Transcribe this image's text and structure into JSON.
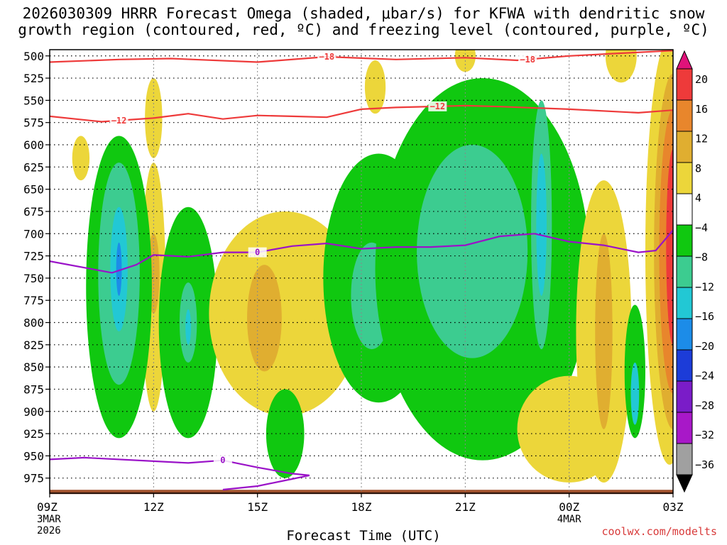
{
  "chart_data": {
    "type": "heatmap",
    "title_line_1": "2026030309 HRRR Forecast Omega (shaded, μbar/s) for KFWA with dendritic snow",
    "title_line_2": "growth region (contoured, red, ºC) and freezing level (contoured, purple, ºC)",
    "xlabel": "Forecast Time (UTC)",
    "credit": "coolwx.com/modelts",
    "x_ticks": [
      {
        "hour": 0,
        "label": "09Z",
        "sub1": "3MAR",
        "sub2": "2026"
      },
      {
        "hour": 3,
        "label": "12Z",
        "sub1": "",
        "sub2": ""
      },
      {
        "hour": 6,
        "label": "15Z",
        "sub1": "",
        "sub2": ""
      },
      {
        "hour": 9,
        "label": "18Z",
        "sub1": "",
        "sub2": ""
      },
      {
        "hour": 12,
        "label": "21Z",
        "sub1": "",
        "sub2": ""
      },
      {
        "hour": 15,
        "label": "00Z",
        "sub1": "4MAR",
        "sub2": ""
      },
      {
        "hour": 18,
        "label": "03Z",
        "sub1": "",
        "sub2": ""
      }
    ],
    "x_range_hours": [
      0,
      18
    ],
    "y_levels_mb": [
      500,
      525,
      550,
      575,
      600,
      625,
      650,
      675,
      700,
      725,
      750,
      775,
      800,
      825,
      850,
      875,
      900,
      925,
      950,
      975
    ],
    "y_range_mb": [
      493,
      992
    ],
    "colorbar": {
      "labels": [
        "20",
        "16",
        "12",
        "8",
        "4",
        "−4",
        "−8",
        "−12",
        "−16",
        "−20",
        "−24",
        "−28",
        "−32",
        "−36"
      ],
      "bins": [
        {
          "lo": 16,
          "hi": 20,
          "color": "#ee3a3a"
        },
        {
          "lo": 12,
          "hi": 16,
          "color": "#e8862c"
        },
        {
          "lo": 8,
          "hi": 12,
          "color": "#e0ae30"
        },
        {
          "lo": 4,
          "hi": 8,
          "color": "#ecd63a"
        },
        {
          "lo": -4,
          "hi": 4,
          "color": "#ffffff"
        },
        {
          "lo": -8,
          "hi": -4,
          "color": "#10c810"
        },
        {
          "lo": -12,
          "hi": -8,
          "color": "#3ccc90"
        },
        {
          "lo": -16,
          "hi": -12,
          "color": "#22c8d4"
        },
        {
          "lo": -20,
          "hi": -16,
          "color": "#1c8ce8"
        },
        {
          "lo": -24,
          "hi": -20,
          "color": "#1c3cd8"
        },
        {
          "lo": -28,
          "hi": -24,
          "color": "#7a1cc8"
        },
        {
          "lo": -32,
          "hi": -28,
          "color": "#a818c8"
        },
        {
          "lo": -36,
          "hi": -32,
          "color": "#a0a0a0"
        }
      ],
      "over_color": "#e0127a",
      "under_color": "#000000"
    },
    "omega_features": [
      {
        "hour": 0.9,
        "p_center": 615,
        "half_h": 0.25,
        "half_p": 25,
        "value": 5
      },
      {
        "hour": 3.0,
        "p_center": 570,
        "half_h": 0.25,
        "half_p": 45,
        "value": 5
      },
      {
        "hour": 3.0,
        "p_center": 760,
        "half_h": 0.35,
        "half_p": 140,
        "value": 5
      },
      {
        "hour": 3.0,
        "p_center": 745,
        "half_h": 0.17,
        "half_p": 45,
        "value": 9
      },
      {
        "hour": 2.0,
        "p_center": 760,
        "half_h": 0.95,
        "half_p": 170,
        "value": -5
      },
      {
        "hour": 2.0,
        "p_center": 745,
        "half_h": 0.6,
        "half_p": 125,
        "value": -9
      },
      {
        "hour": 2.0,
        "p_center": 740,
        "half_h": 0.25,
        "half_p": 70,
        "value": -13
      },
      {
        "hour": 2.0,
        "p_center": 740,
        "half_h": 0.08,
        "half_p": 30,
        "value": -17
      },
      {
        "hour": 4.0,
        "p_center": 800,
        "half_h": 0.85,
        "half_p": 130,
        "value": -5
      },
      {
        "hour": 4.0,
        "p_center": 800,
        "half_h": 0.25,
        "half_p": 45,
        "value": -9
      },
      {
        "hour": 4.0,
        "p_center": 805,
        "half_h": 0.08,
        "half_p": 20,
        "value": -13
      },
      {
        "hour": 6.8,
        "p_center": 790,
        "half_h": 2.2,
        "half_p": 115,
        "value": 5
      },
      {
        "hour": 6.2,
        "p_center": 795,
        "half_h": 0.5,
        "half_p": 60,
        "value": 9
      },
      {
        "hour": 6.8,
        "p_center": 925,
        "half_h": 0.55,
        "half_p": 50,
        "value": -5
      },
      {
        "hour": 9.4,
        "p_center": 535,
        "half_h": 0.3,
        "half_p": 30,
        "value": 5
      },
      {
        "hour": 9.5,
        "p_center": 750,
        "half_h": 1.6,
        "half_p": 140,
        "value": -5
      },
      {
        "hour": 9.3,
        "p_center": 770,
        "half_h": 0.6,
        "half_p": 60,
        "value": -9
      },
      {
        "hour": 12.5,
        "p_center": 740,
        "half_h": 3.1,
        "half_p": 215,
        "value": -5
      },
      {
        "hour": 12.2,
        "p_center": 720,
        "half_h": 1.6,
        "half_p": 120,
        "value": -9
      },
      {
        "hour": 14.2,
        "p_center": 690,
        "half_h": 0.3,
        "half_p": 140,
        "value": -9
      },
      {
        "hour": 14.2,
        "p_center": 690,
        "half_h": 0.15,
        "half_p": 80,
        "value": -13
      },
      {
        "hour": 15.0,
        "p_center": 920,
        "half_h": 1.5,
        "half_p": 60,
        "value": 5
      },
      {
        "hour": 16.0,
        "p_center": 810,
        "half_h": 0.8,
        "half_p": 170,
        "value": 5
      },
      {
        "hour": 16.0,
        "p_center": 810,
        "half_h": 0.25,
        "half_p": 110,
        "value": 9
      },
      {
        "hour": 16.9,
        "p_center": 855,
        "half_h": 0.3,
        "half_p": 75,
        "value": -5
      },
      {
        "hour": 16.9,
        "p_center": 880,
        "half_h": 0.12,
        "half_p": 35,
        "value": -13
      },
      {
        "hour": 17.9,
        "p_center": 720,
        "half_h": 0.7,
        "half_p": 240,
        "value": 5
      },
      {
        "hour": 18.0,
        "p_center": 720,
        "half_h": 0.55,
        "half_p": 200,
        "value": 9
      },
      {
        "hour": 18.0,
        "p_center": 720,
        "half_h": 0.4,
        "half_p": 160,
        "value": 13
      },
      {
        "hour": 18.0,
        "p_center": 715,
        "half_h": 0.2,
        "half_p": 110,
        "value": 17
      },
      {
        "hour": 12.0,
        "p_center": 500,
        "half_h": 0.3,
        "half_p": 18,
        "value": 5
      },
      {
        "hour": 16.5,
        "p_center": 500,
        "half_h": 0.45,
        "half_p": 30,
        "value": 5
      }
    ],
    "dgz_contours": [
      {
        "label": "−18",
        "label_hour": 8.0,
        "points": [
          [
            0,
            507
          ],
          [
            2.0,
            504
          ],
          [
            3.5,
            503
          ],
          [
            6.0,
            507
          ],
          [
            8.0,
            501
          ],
          [
            10.0,
            504
          ],
          [
            12.0,
            502
          ],
          [
            13.5,
            505
          ],
          [
            15.0,
            500
          ],
          [
            16.5,
            497
          ],
          [
            18.0,
            494
          ]
        ]
      },
      {
        "label": "−18",
        "label_hour": 13.8,
        "points": []
      },
      {
        "label": "−12",
        "label_hour": 2.0,
        "points": [
          [
            0,
            568
          ],
          [
            1.5,
            574
          ],
          [
            3.0,
            570
          ],
          [
            4.0,
            565
          ],
          [
            5.0,
            571
          ],
          [
            6.0,
            567
          ],
          [
            7.0,
            568
          ],
          [
            8.0,
            569
          ],
          [
            9.0,
            560
          ],
          [
            10.0,
            558
          ],
          [
            12.0,
            556
          ],
          [
            13.0,
            557
          ],
          [
            15.0,
            560
          ],
          [
            17.0,
            564
          ],
          [
            18.0,
            561
          ]
        ]
      },
      {
        "label": "−12",
        "label_hour": 11.2,
        "points": []
      }
    ],
    "freezing_contours": [
      {
        "label": "0",
        "label_hour": 6.0,
        "points": [
          [
            0,
            731
          ],
          [
            1.8,
            744
          ],
          [
            2.5,
            735
          ],
          [
            3.0,
            724
          ],
          [
            4.0,
            726
          ],
          [
            5.0,
            721
          ],
          [
            6.0,
            721
          ],
          [
            7.0,
            714
          ],
          [
            8.0,
            711
          ],
          [
            9.0,
            717
          ],
          [
            10.0,
            715
          ],
          [
            11.0,
            715
          ],
          [
            12.0,
            713
          ],
          [
            13.0,
            703
          ],
          [
            14.0,
            700
          ],
          [
            15.0,
            709
          ],
          [
            16.0,
            713
          ],
          [
            17.0,
            721
          ],
          [
            17.5,
            719
          ],
          [
            18.0,
            696
          ]
        ]
      },
      {
        "label": "0",
        "label_hour": 5.0,
        "points": [
          [
            0,
            954
          ],
          [
            1.0,
            952
          ],
          [
            3.0,
            956
          ],
          [
            4.0,
            958
          ],
          [
            5.0,
            955
          ],
          [
            6.0,
            963
          ],
          [
            7.0,
            970
          ],
          [
            7.5,
            972
          ],
          [
            7.0,
            976
          ],
          [
            6.0,
            984
          ],
          [
            5.0,
            988
          ]
        ]
      }
    ],
    "ground_band_mb": 985,
    "ground_color": "#a0522d"
  }
}
